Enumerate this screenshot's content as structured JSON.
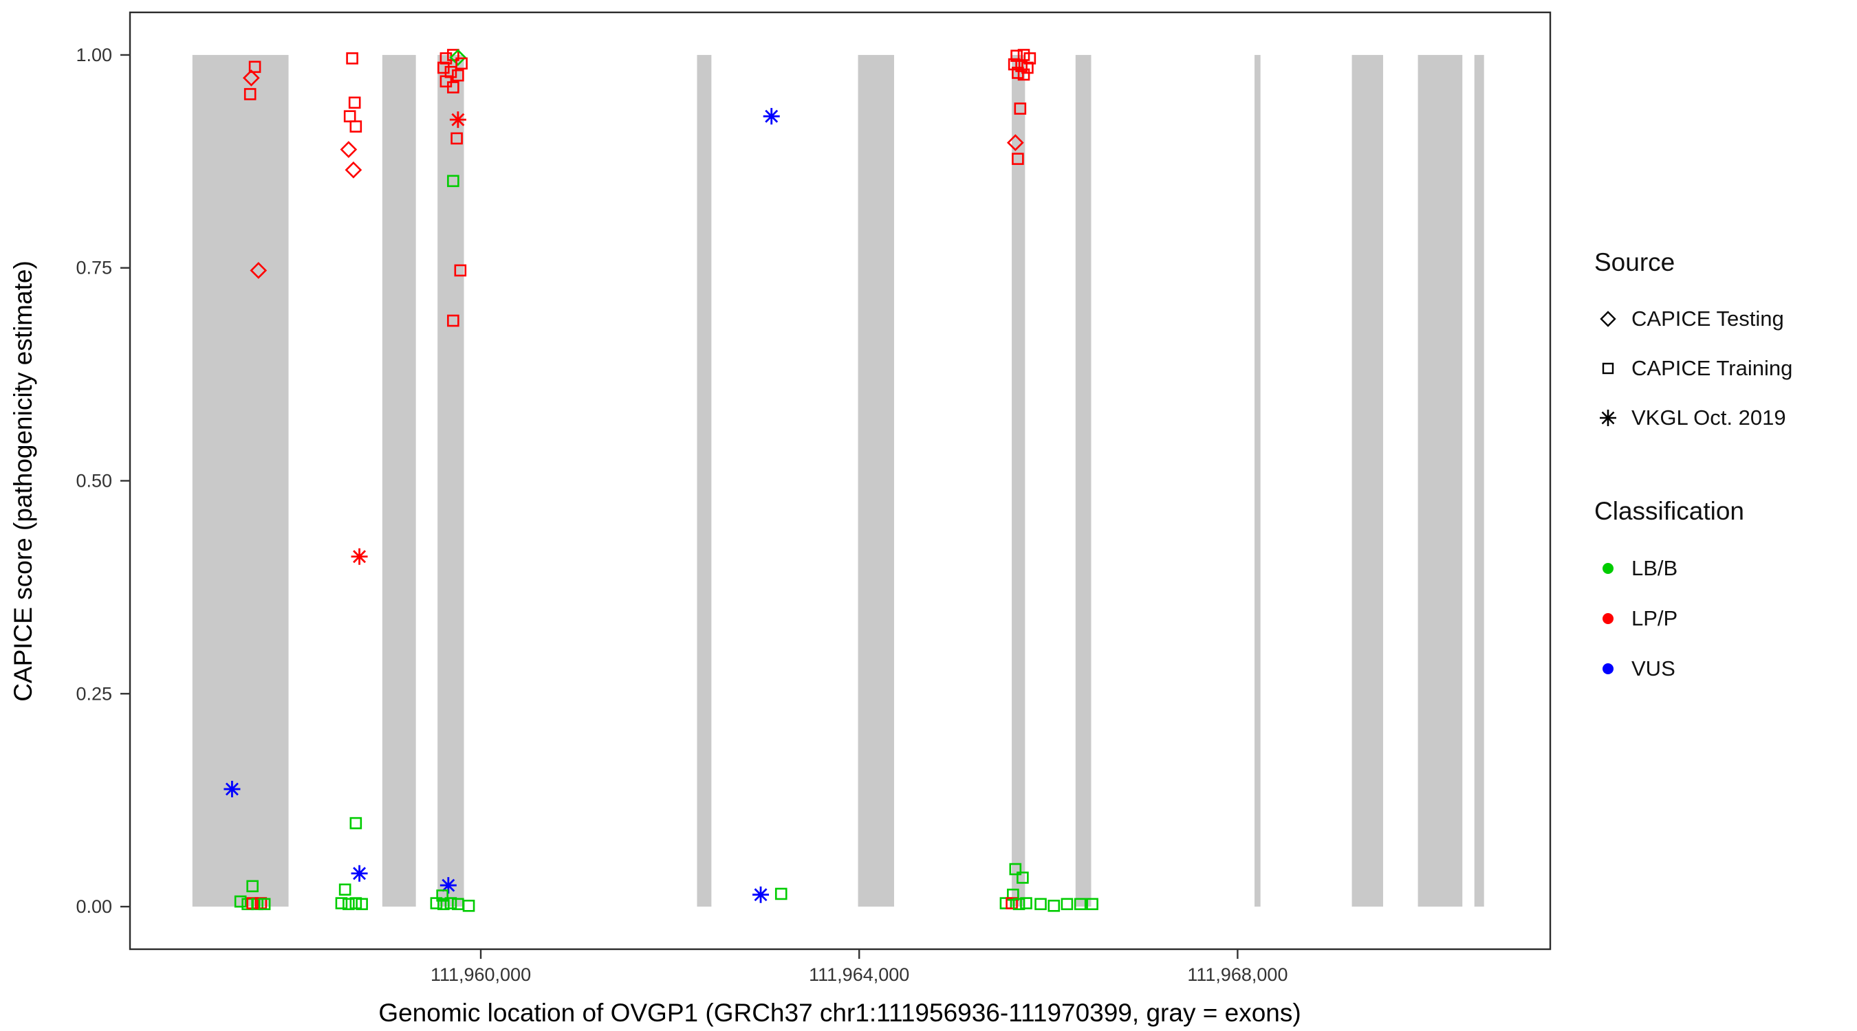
{
  "chart_data": {
    "type": "scatter",
    "title": "",
    "xlabel": "Genomic location of OVGP1 (GRCh37 chr1:111956936-111970399, gray = exons)",
    "ylabel": "CAPICE score (pathogenicity estimate)",
    "x_domain": [
      111956292,
      111971305
    ],
    "y_domain": [
      -0.05,
      1.05
    ],
    "x_ticks": [
      {
        "value": 111960000,
        "label": "111,960,000"
      },
      {
        "value": 111964000,
        "label": "111,964,000"
      },
      {
        "value": 111968000,
        "label": "111,968,000"
      }
    ],
    "y_ticks": [
      {
        "value": 1.0,
        "label": "1.00"
      },
      {
        "value": 0.75,
        "label": "0.75"
      },
      {
        "value": 0.5,
        "label": "0.50"
      },
      {
        "value": 0.25,
        "label": "0.25"
      },
      {
        "value": 0.0,
        "label": "0.00"
      }
    ],
    "exon_color": "#C9C9C9",
    "exon_band_score_range": [
      0,
      1
    ],
    "exons": [
      [
        111956952,
        111957968
      ],
      [
        111958959,
        111959314
      ],
      [
        111959543,
        111959822
      ],
      [
        111962286,
        111962438
      ],
      [
        111963988,
        111964369
      ],
      [
        111965613,
        111965753
      ],
      [
        111966287,
        111966452
      ],
      [
        111968179,
        111968242
      ],
      [
        111969208,
        111969538
      ],
      [
        111969906,
        111970376
      ],
      [
        111970503,
        111970605
      ]
    ],
    "shape_by_source": {
      "CAPICE Testing": "diamond",
      "CAPICE Training": "square",
      "VKGL Oct. 2019": "asterisk"
    },
    "color_by_class": {
      "LB/B": "#00CC00",
      "LP/P": "#FF0000",
      "VUS": "#0000FF"
    },
    "points_columns": [
      "genomic_position",
      "capice_score",
      "source",
      "classification"
    ],
    "points": [
      [
        111957612,
        0.986,
        "CAPICE Training",
        "LP/P"
      ],
      [
        111957574,
        0.973,
        "CAPICE Testing",
        "LP/P"
      ],
      [
        111957562,
        0.954,
        "CAPICE Training",
        "LP/P"
      ],
      [
        111957650,
        0.747,
        "CAPICE Testing",
        "LP/P"
      ],
      [
        111957371,
        0.138,
        "VKGL Oct. 2019",
        "VUS"
      ],
      [
        111957587,
        0.024,
        "CAPICE Training",
        "LB/B"
      ],
      [
        111957460,
        0.006,
        "CAPICE Training",
        "LB/B"
      ],
      [
        111957536,
        0.003,
        "CAPICE Training",
        "LB/B"
      ],
      [
        111957587,
        0.004,
        "CAPICE Training",
        "LP/P"
      ],
      [
        111957638,
        0.003,
        "CAPICE Training",
        "LB/B"
      ],
      [
        111957676,
        0.004,
        "CAPICE Training",
        "LP/P"
      ],
      [
        111957714,
        0.003,
        "CAPICE Training",
        "LB/B"
      ],
      [
        111958641,
        0.996,
        "CAPICE Training",
        "LP/P"
      ],
      [
        111958667,
        0.944,
        "CAPICE Training",
        "LP/P"
      ],
      [
        111958616,
        0.928,
        "CAPICE Training",
        "LP/P"
      ],
      [
        111958679,
        0.916,
        "CAPICE Training",
        "LP/P"
      ],
      [
        111958603,
        0.889,
        "CAPICE Testing",
        "LP/P"
      ],
      [
        111958654,
        0.865,
        "CAPICE Testing",
        "LP/P"
      ],
      [
        111958717,
        0.411,
        "VKGL Oct. 2019",
        "LP/P"
      ],
      [
        111958679,
        0.098,
        "CAPICE Training",
        "LB/B"
      ],
      [
        111958717,
        0.039,
        "VKGL Oct. 2019",
        "VUS"
      ],
      [
        111958565,
        0.02,
        "CAPICE Training",
        "LB/B"
      ],
      [
        111958527,
        0.004,
        "CAPICE Training",
        "LB/B"
      ],
      [
        111958603,
        0.003,
        "CAPICE Training",
        "LB/B"
      ],
      [
        111958679,
        0.004,
        "CAPICE Training",
        "LB/B"
      ],
      [
        111958743,
        0.003,
        "CAPICE Training",
        "LB/B"
      ],
      [
        111959632,
        0.996,
        "CAPICE Training",
        "LP/P"
      ],
      [
        111959708,
        1.0,
        "CAPICE Training",
        "LP/P"
      ],
      [
        111959759,
        0.997,
        "CAPICE Testing",
        "LB/B"
      ],
      [
        111959797,
        0.99,
        "CAPICE Training",
        "LP/P"
      ],
      [
        111959606,
        0.985,
        "CAPICE Training",
        "LP/P"
      ],
      [
        111959683,
        0.98,
        "CAPICE Training",
        "LP/P"
      ],
      [
        111959759,
        0.976,
        "CAPICE Training",
        "LP/P"
      ],
      [
        111959632,
        0.969,
        "CAPICE Training",
        "LP/P"
      ],
      [
        111959708,
        0.962,
        "CAPICE Training",
        "LP/P"
      ],
      [
        111959759,
        0.924,
        "VKGL Oct. 2019",
        "LP/P"
      ],
      [
        111959746,
        0.902,
        "CAPICE Training",
        "LP/P"
      ],
      [
        111959708,
        0.852,
        "CAPICE Training",
        "LB/B"
      ],
      [
        111959784,
        0.747,
        "CAPICE Training",
        "LP/P"
      ],
      [
        111959708,
        0.688,
        "CAPICE Training",
        "LP/P"
      ],
      [
        111959657,
        0.025,
        "VKGL Oct. 2019",
        "VUS"
      ],
      [
        111959594,
        0.013,
        "CAPICE Training",
        "LB/B"
      ],
      [
        111959530,
        0.004,
        "CAPICE Training",
        "LB/B"
      ],
      [
        111959606,
        0.003,
        "CAPICE Training",
        "LB/B"
      ],
      [
        111959683,
        0.004,
        "CAPICE Training",
        "LB/B"
      ],
      [
        111959759,
        0.003,
        "CAPICE Training",
        "LB/B"
      ],
      [
        111959873,
        0.001,
        "CAPICE Training",
        "LB/B"
      ],
      [
        111963073,
        0.928,
        "VKGL Oct. 2019",
        "VUS"
      ],
      [
        111962959,
        0.014,
        "VKGL Oct. 2019",
        "VUS"
      ],
      [
        111963175,
        0.015,
        "CAPICE Training",
        "LB/B"
      ],
      [
        111965664,
        0.999,
        "CAPICE Training",
        "LP/P"
      ],
      [
        111965740,
        1.0,
        "CAPICE Training",
        "LP/P"
      ],
      [
        111965804,
        0.996,
        "CAPICE Training",
        "LP/P"
      ],
      [
        111965639,
        0.989,
        "CAPICE Training",
        "LP/P"
      ],
      [
        111965715,
        0.987,
        "CAPICE Training",
        "LP/P"
      ],
      [
        111965779,
        0.985,
        "CAPICE Training",
        "LP/P"
      ],
      [
        111965677,
        0.979,
        "CAPICE Training",
        "LP/P"
      ],
      [
        111965740,
        0.977,
        "CAPICE Training",
        "LP/P"
      ],
      [
        111965702,
        0.937,
        "CAPICE Training",
        "LP/P"
      ],
      [
        111965651,
        0.897,
        "CAPICE Testing",
        "LP/P"
      ],
      [
        111965677,
        0.878,
        "CAPICE Training",
        "LP/P"
      ],
      [
        111965651,
        0.044,
        "CAPICE Training",
        "LB/B"
      ],
      [
        111965728,
        0.034,
        "CAPICE Training",
        "LB/B"
      ],
      [
        111965626,
        0.014,
        "CAPICE Training",
        "LB/B"
      ],
      [
        111965550,
        0.004,
        "CAPICE Training",
        "LB/B"
      ],
      [
        111965613,
        0.004,
        "CAPICE Training",
        "LP/P"
      ],
      [
        111965689,
        0.003,
        "CAPICE Training",
        "LB/B"
      ],
      [
        111965765,
        0.004,
        "CAPICE Training",
        "LB/B"
      ],
      [
        111965918,
        0.003,
        "CAPICE Training",
        "LB/B"
      ],
      [
        111966058,
        0.001,
        "CAPICE Training",
        "LB/B"
      ],
      [
        111966197,
        0.003,
        "CAPICE Training",
        "LB/B"
      ],
      [
        111966337,
        0.003,
        "CAPICE Training",
        "LB/B"
      ],
      [
        111966464,
        0.003,
        "CAPICE Training",
        "LB/B"
      ]
    ]
  },
  "legend": {
    "source": {
      "title": "Source",
      "items": [
        {
          "label": "CAPICE Testing",
          "shape": "diamond"
        },
        {
          "label": "CAPICE Training",
          "shape": "square"
        },
        {
          "label": "VKGL Oct. 2019",
          "shape": "asterisk"
        }
      ]
    },
    "classification": {
      "title": "Classification",
      "items": [
        {
          "label": "LB/B",
          "color": "#00CC00"
        },
        {
          "label": "LP/P",
          "color": "#FF0000"
        },
        {
          "label": "VUS",
          "color": "#0000FF"
        }
      ]
    }
  }
}
